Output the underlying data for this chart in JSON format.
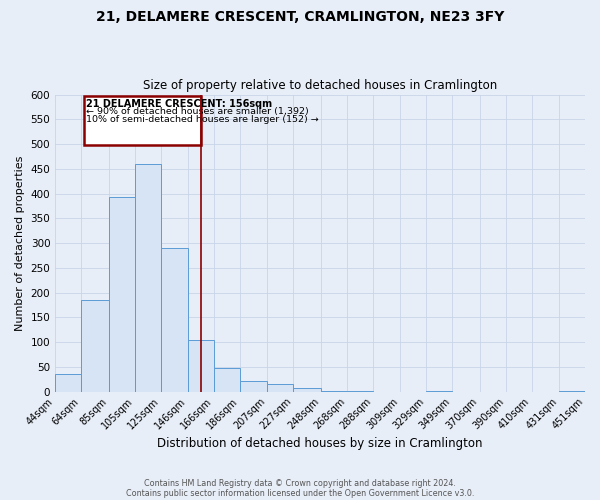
{
  "title": "21, DELAMERE CRESCENT, CRAMLINGTON, NE23 3FY",
  "subtitle": "Size of property relative to detached houses in Cramlington",
  "xlabel": "Distribution of detached houses by size in Cramlington",
  "ylabel": "Number of detached properties",
  "bin_edges": [
    44,
    64,
    85,
    105,
    125,
    146,
    166,
    186,
    207,
    227,
    248,
    268,
    288,
    309,
    329,
    349,
    370,
    390,
    410,
    431,
    451
  ],
  "bin_heights": [
    35,
    185,
    393,
    460,
    290,
    105,
    48,
    22,
    15,
    8,
    1,
    1,
    0,
    0,
    1,
    0,
    0,
    0,
    0,
    1
  ],
  "bar_facecolor": "#d6e4f5",
  "bar_edgecolor": "#5b9bd5",
  "vline_x": 156,
  "vline_color": "#8b0000",
  "annotation_title": "21 DELAMERE CRESCENT: 156sqm",
  "annotation_line1": "← 90% of detached houses are smaller (1,392)",
  "annotation_line2": "10% of semi-detached houses are larger (152) →",
  "annotation_box_color": "#8b0000",
  "ylim": [
    0,
    600
  ],
  "yticks": [
    0,
    50,
    100,
    150,
    200,
    250,
    300,
    350,
    400,
    450,
    500,
    550,
    600
  ],
  "grid_color": "#c8d4e8",
  "bg_color": "#e8eef8",
  "footer_line1": "Contains HM Land Registry data © Crown copyright and database right 2024.",
  "footer_line2": "Contains public sector information licensed under the Open Government Licence v3.0."
}
